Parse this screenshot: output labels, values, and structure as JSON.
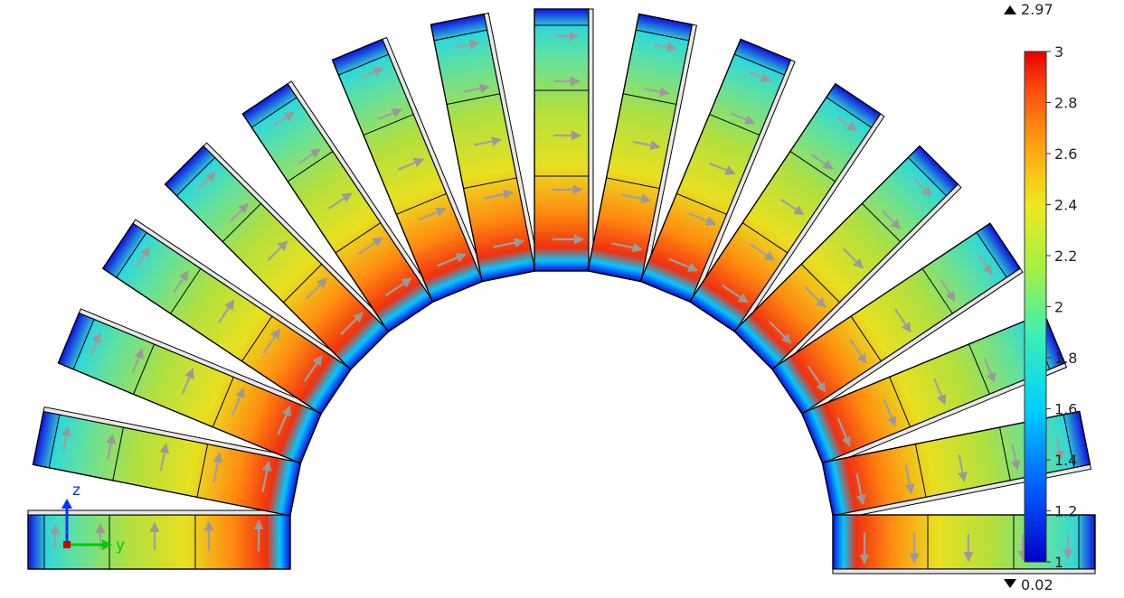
{
  "colorbar": {
    "max_marker": "2.97",
    "min_marker": "0.02",
    "ticks": [
      "3",
      "2.8",
      "2.6",
      "2.4",
      "2.2",
      "2",
      "1.8",
      "1.6",
      "1.4",
      "1.2",
      "1"
    ],
    "colormap": "rainbow",
    "range": [
      1,
      3
    ]
  },
  "axes_triad": {
    "z_label": "z",
    "y_label": "y",
    "x_color": "#cc0000",
    "y_color": "#00cc00",
    "z_color": "#0033ff"
  },
  "model": {
    "segment_count": 17,
    "arrow_color": "#a0a0a0",
    "edge_color": "#000000"
  }
}
